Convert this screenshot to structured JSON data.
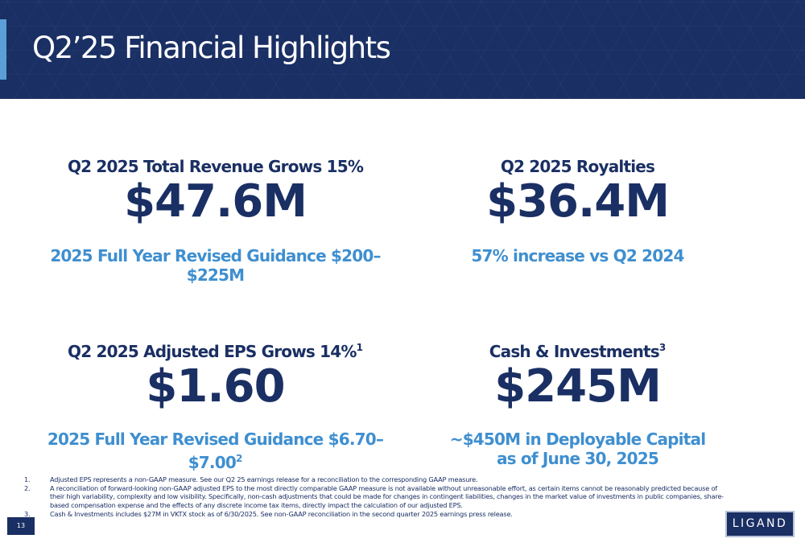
{
  "header": {
    "title": "Q2’25 Financial Highlights"
  },
  "blocks": [
    {
      "heading": "Q2 2025 Total Revenue Grows 15%",
      "value": "$47.6M",
      "sub": "2025 Full Year Revised Guidance $200–$225M"
    },
    {
      "heading": "Q2 2025 Royalties",
      "value": "$36.4M",
      "sub": "57% increase vs Q2 2024"
    },
    {
      "heading": "Q2 2025 Adjusted EPS Grows 14%",
      "heading_note": "1",
      "value": "$1.60",
      "sub": "2025 Full Year Revised Guidance $6.70–$7.00",
      "sub_note": "2"
    },
    {
      "heading": "Cash & Investments",
      "heading_note": "3",
      "value": "$245M",
      "sub_line1": "~$450M in Deployable Capital",
      "sub_line2": "as of June 30, 2025"
    }
  ],
  "footnotes": [
    {
      "num": "1.",
      "text": "Adjusted EPS represents a non-GAAP measure. See our Q2 25 earnings release for a reconciliation to the corresponding GAAP measure."
    },
    {
      "num": "2.",
      "text": "A reconciliation of forward-looking non-GAAP adjusted EPS to the most directly comparable GAAP measure is not available without unreasonable effort, as certain items cannot be reasonably predicted because of their high variability, complexity and low visibility. Specifically, non-cash adjustments that could be made for changes in contingent liabilities, changes in the market value of investments in public companies, share-based compensation expense and the effects of any discrete income tax items, directly impact the calculation of our adjusted EPS."
    },
    {
      "num": "3.",
      "text": "Cash & Investments includes $27M in VKTX stock as of 6/30/2025. See non-GAAP reconciliation in the second quarter 2025 earnings press release."
    }
  ],
  "page_number": "13",
  "logo_text": "LIGAND",
  "colors": {
    "navy": "#1a2f63",
    "accent_blue": "#3f8fd0",
    "header_accent": "#5b9fd6"
  }
}
